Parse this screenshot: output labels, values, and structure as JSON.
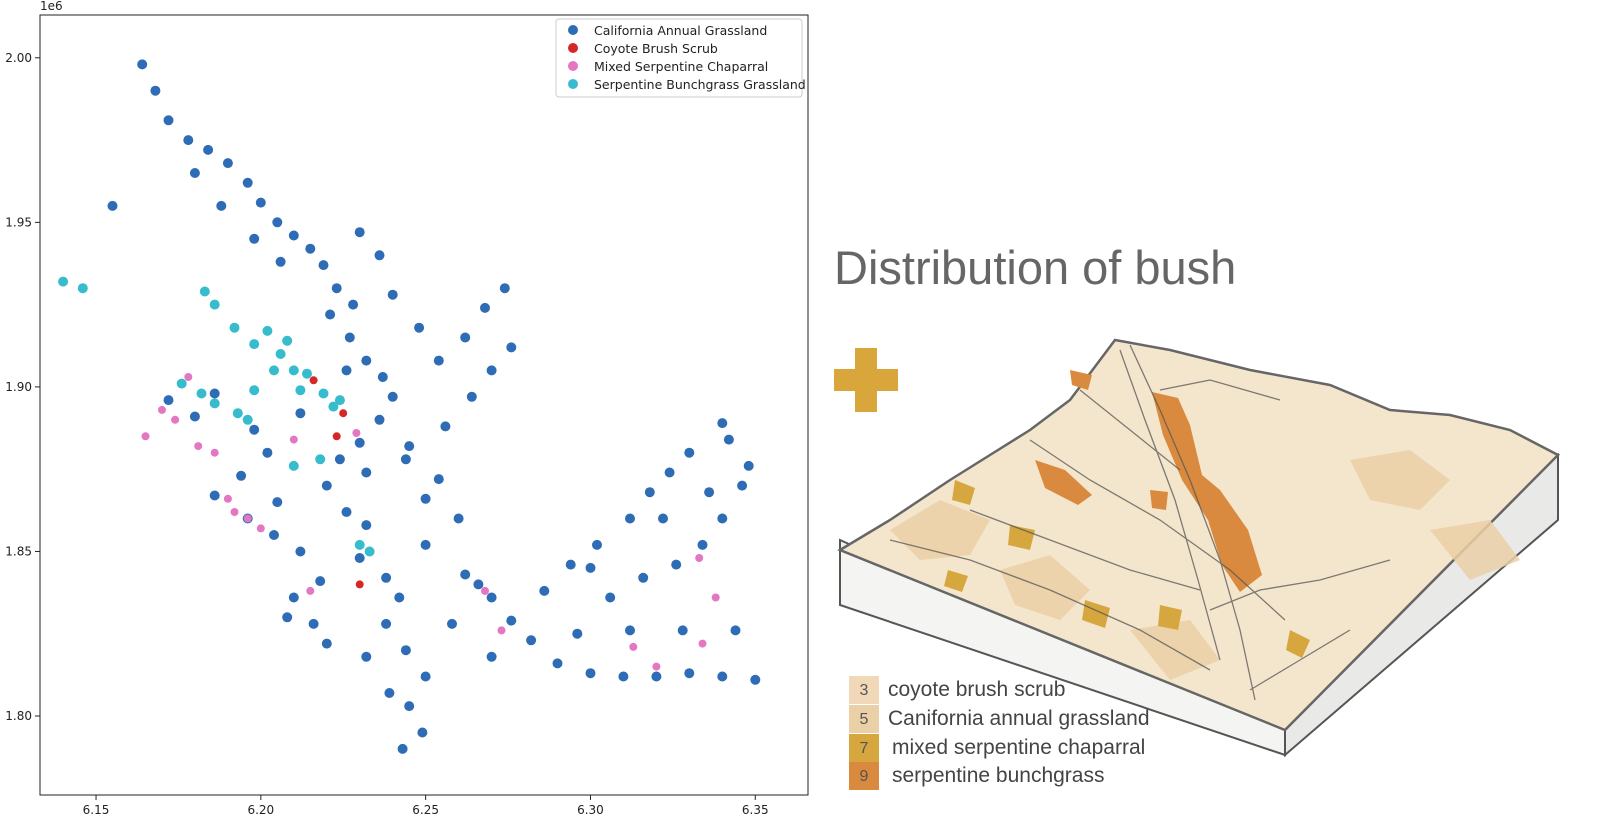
{
  "chart_data": {
    "type": "scatter",
    "title": "",
    "xlabel": "",
    "ylabel": "",
    "axis_offset_label": "1e6",
    "xlim": [
      6.133,
      6.366
    ],
    "ylim": [
      1.776,
      2.013
    ],
    "xticks": [
      6.15,
      6.2,
      6.25,
      6.3,
      6.35
    ],
    "xtick_labels": [
      "6.15",
      "6.20",
      "6.25",
      "6.30",
      "6.35"
    ],
    "yticks": [
      1.8,
      1.85,
      1.9,
      1.95,
      2.0
    ],
    "ytick_labels": [
      "1.80",
      "1.85",
      "1.90",
      "1.95",
      "2.00"
    ],
    "grid": false,
    "legend_position": "top-right",
    "series": [
      {
        "name": "California Annual Grassland",
        "color": "#2e6db5",
        "points": [
          [
            6.164,
            1.998
          ],
          [
            6.168,
            1.99
          ],
          [
            6.172,
            1.981
          ],
          [
            6.178,
            1.975
          ],
          [
            6.184,
            1.972
          ],
          [
            6.19,
            1.968
          ],
          [
            6.196,
            1.962
          ],
          [
            6.2,
            1.956
          ],
          [
            6.205,
            1.95
          ],
          [
            6.21,
            1.946
          ],
          [
            6.215,
            1.942
          ],
          [
            6.219,
            1.937
          ],
          [
            6.223,
            1.93
          ],
          [
            6.221,
            1.922
          ],
          [
            6.227,
            1.915
          ],
          [
            6.232,
            1.908
          ],
          [
            6.237,
            1.903
          ],
          [
            6.24,
            1.897
          ],
          [
            6.236,
            1.89
          ],
          [
            6.23,
            1.883
          ],
          [
            6.224,
            1.878
          ],
          [
            6.22,
            1.87
          ],
          [
            6.226,
            1.862
          ],
          [
            6.232,
            1.858
          ],
          [
            6.23,
            1.848
          ],
          [
            6.238,
            1.842
          ],
          [
            6.242,
            1.836
          ],
          [
            6.238,
            1.828
          ],
          [
            6.244,
            1.82
          ],
          [
            6.25,
            1.812
          ],
          [
            6.245,
            1.803
          ],
          [
            6.249,
            1.795
          ],
          [
            6.243,
            1.79
          ],
          [
            6.239,
            1.807
          ],
          [
            6.262,
            1.843
          ],
          [
            6.27,
            1.836
          ],
          [
            6.276,
            1.829
          ],
          [
            6.282,
            1.823
          ],
          [
            6.29,
            1.816
          ],
          [
            6.3,
            1.813
          ],
          [
            6.31,
            1.812
          ],
          [
            6.32,
            1.812
          ],
          [
            6.33,
            1.813
          ],
          [
            6.34,
            1.812
          ],
          [
            6.35,
            1.811
          ],
          [
            6.306,
            1.836
          ],
          [
            6.316,
            1.842
          ],
          [
            6.326,
            1.846
          ],
          [
            6.334,
            1.852
          ],
          [
            6.34,
            1.86
          ],
          [
            6.346,
            1.87
          ],
          [
            6.348,
            1.876
          ],
          [
            6.342,
            1.884
          ],
          [
            6.34,
            1.889
          ],
          [
            6.33,
            1.88
          ],
          [
            6.324,
            1.874
          ],
          [
            6.318,
            1.868
          ],
          [
            6.312,
            1.86
          ],
          [
            6.302,
            1.852
          ],
          [
            6.294,
            1.846
          ],
          [
            6.286,
            1.838
          ],
          [
            6.26,
            1.86
          ],
          [
            6.254,
            1.872
          ],
          [
            6.25,
            1.866
          ],
          [
            6.244,
            1.878
          ],
          [
            6.256,
            1.888
          ],
          [
            6.264,
            1.897
          ],
          [
            6.27,
            1.905
          ],
          [
            6.276,
            1.912
          ],
          [
            6.274,
            1.93
          ],
          [
            6.268,
            1.924
          ],
          [
            6.262,
            1.915
          ],
          [
            6.254,
            1.908
          ],
          [
            6.248,
            1.918
          ],
          [
            6.24,
            1.928
          ],
          [
            6.236,
            1.94
          ],
          [
            6.23,
            1.947
          ],
          [
            6.245,
            1.882
          ],
          [
            6.212,
            1.892
          ],
          [
            6.202,
            1.88
          ],
          [
            6.194,
            1.873
          ],
          [
            6.186,
            1.867
          ],
          [
            6.196,
            1.86
          ],
          [
            6.204,
            1.855
          ],
          [
            6.212,
            1.85
          ],
          [
            6.21,
            1.836
          ],
          [
            6.216,
            1.828
          ],
          [
            6.22,
            1.822
          ],
          [
            6.218,
            1.841
          ],
          [
            6.205,
            1.865
          ],
          [
            6.198,
            1.887
          ],
          [
            6.18,
            1.891
          ],
          [
            6.172,
            1.896
          ],
          [
            6.186,
            1.898
          ],
          [
            6.232,
            1.874
          ],
          [
            6.25,
            1.852
          ],
          [
            6.258,
            1.828
          ],
          [
            6.266,
            1.84
          ],
          [
            6.228,
            1.925
          ],
          [
            6.226,
            1.905
          ],
          [
            6.18,
            1.965
          ],
          [
            6.188,
            1.955
          ],
          [
            6.198,
            1.945
          ],
          [
            6.206,
            1.938
          ],
          [
            6.155,
            1.955
          ],
          [
            6.208,
            1.83
          ],
          [
            6.232,
            1.818
          ],
          [
            6.27,
            1.818
          ],
          [
            6.296,
            1.825
          ],
          [
            6.312,
            1.826
          ],
          [
            6.328,
            1.826
          ],
          [
            6.344,
            1.826
          ],
          [
            6.322,
            1.86
          ],
          [
            6.336,
            1.868
          ],
          [
            6.3,
            1.845
          ]
        ]
      },
      {
        "name": "Coyote Brush Scrub",
        "color": "#d62728",
        "points": [
          [
            6.225,
            1.892
          ],
          [
            6.223,
            1.885
          ],
          [
            6.216,
            1.902
          ],
          [
            6.23,
            1.84
          ]
        ]
      },
      {
        "name": "Mixed Serpentine Chaparral",
        "color": "#e377c2",
        "points": [
          [
            6.17,
            1.893
          ],
          [
            6.174,
            1.89
          ],
          [
            6.181,
            1.882
          ],
          [
            6.186,
            1.88
          ],
          [
            6.192,
            1.862
          ],
          [
            6.196,
            1.86
          ],
          [
            6.2,
            1.857
          ],
          [
            6.19,
            1.866
          ],
          [
            6.229,
            1.886
          ],
          [
            6.268,
            1.838
          ],
          [
            6.273,
            1.826
          ],
          [
            6.313,
            1.821
          ],
          [
            6.32,
            1.815
          ],
          [
            6.334,
            1.822
          ],
          [
            6.338,
            1.836
          ],
          [
            6.333,
            1.848
          ],
          [
            6.165,
            1.885
          ],
          [
            6.21,
            1.884
          ],
          [
            6.215,
            1.838
          ],
          [
            6.178,
            1.903
          ]
        ]
      },
      {
        "name": "Serpentine Bunchgrass Grassland",
        "color": "#37bccd",
        "points": [
          [
            6.183,
            1.929
          ],
          [
            6.186,
            1.925
          ],
          [
            6.192,
            1.918
          ],
          [
            6.198,
            1.913
          ],
          [
            6.202,
            1.917
          ],
          [
            6.206,
            1.91
          ],
          [
            6.21,
            1.905
          ],
          [
            6.212,
            1.899
          ],
          [
            6.214,
            1.904
          ],
          [
            6.219,
            1.898
          ],
          [
            6.222,
            1.894
          ],
          [
            6.224,
            1.896
          ],
          [
            6.176,
            1.901
          ],
          [
            6.182,
            1.898
          ],
          [
            6.186,
            1.895
          ],
          [
            6.193,
            1.892
          ],
          [
            6.196,
            1.89
          ],
          [
            6.204,
            1.905
          ],
          [
            6.218,
            1.878
          ],
          [
            6.21,
            1.876
          ],
          [
            6.23,
            1.852
          ],
          [
            6.233,
            1.85
          ],
          [
            6.14,
            1.932
          ],
          [
            6.146,
            1.93
          ],
          [
            6.198,
            1.899
          ],
          [
            6.208,
            1.914
          ]
        ]
      }
    ]
  },
  "infographic": {
    "title": "Distribution of bush",
    "plus_icon": "plus-icon",
    "legend": [
      {
        "code": "3",
        "label": "coyote brush scrub",
        "color": "#f1d8b8"
      },
      {
        "code": "5",
        "label": "Canifornia annual grassland",
        "color": "#ebcfa6"
      },
      {
        "code": "7",
        "label": "mixed serpentine chaparral",
        "color": "#d6a73e"
      },
      {
        "code": "9",
        "label": "serpentine bunchgrass",
        "color": "#d98a3e"
      }
    ]
  }
}
